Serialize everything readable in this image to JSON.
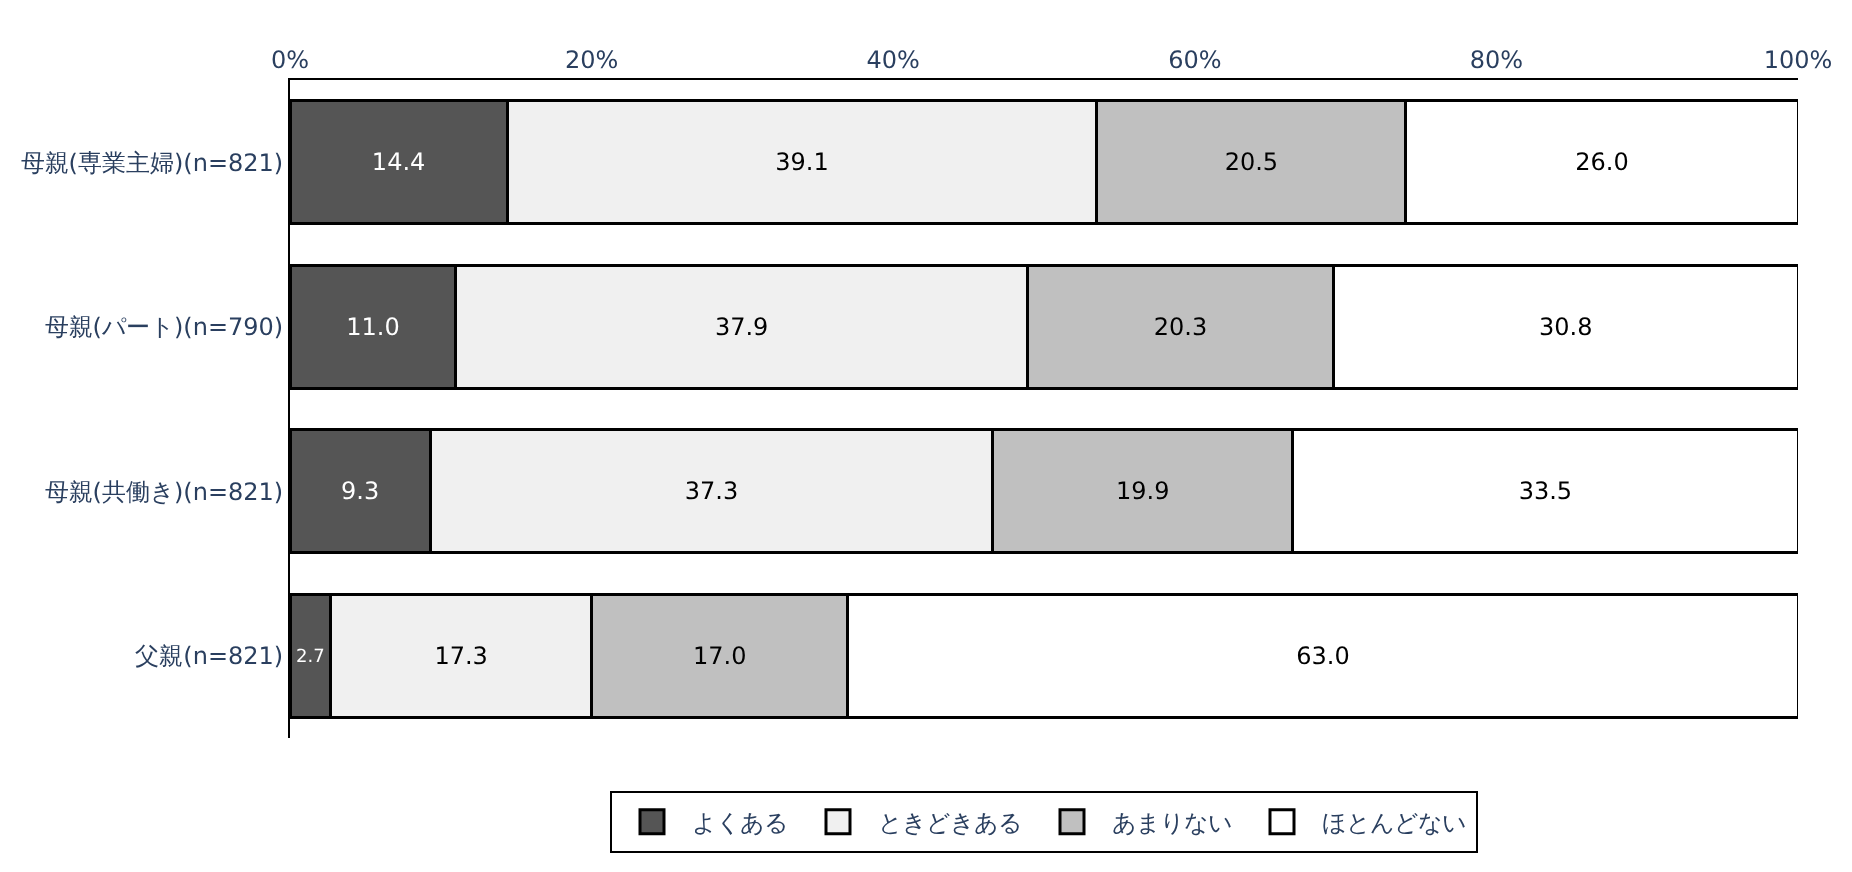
{
  "chart_data": {
    "type": "bar",
    "orientation": "horizontal",
    "stacked": true,
    "legend": "bottom",
    "categories": [
      "母親(専業主婦)(n=821)",
      "母親(パート)(n=790)",
      "母親(共働き)(n=821)",
      "父親(n=821)"
    ],
    "xlim": [
      0,
      100
    ],
    "xticks": [
      {
        "value": 0,
        "label": "0%"
      },
      {
        "value": 20,
        "label": "20%"
      },
      {
        "value": 40,
        "label": "40%"
      },
      {
        "value": 60,
        "label": "60%"
      },
      {
        "value": 80,
        "label": "80%"
      },
      {
        "value": 100,
        "label": "100%"
      }
    ],
    "series": [
      {
        "name": "よくある",
        "color": "#555555",
        "values": [
          14.4,
          11.0,
          9.3,
          2.7
        ],
        "value_labels": [
          "14.4",
          "11.0",
          "9.3",
          "2.7"
        ]
      },
      {
        "name": "ときどきある",
        "color": "#f0f0f0",
        "values": [
          39.1,
          37.9,
          37.3,
          17.3
        ],
        "value_labels": [
          "39.1",
          "37.9",
          "37.3",
          "17.3"
        ]
      },
      {
        "name": "あまりない",
        "color": "#c0c0c0",
        "values": [
          20.5,
          20.3,
          19.9,
          17.0
        ],
        "value_labels": [
          "20.5",
          "20.3",
          "19.9",
          "17.0"
        ]
      },
      {
        "name": "ほとんどない",
        "color": "#ffffff",
        "values": [
          26.0,
          30.8,
          33.5,
          63.0
        ],
        "value_labels": [
          "26.0",
          "30.8",
          "33.5",
          "63.0"
        ]
      }
    ]
  }
}
